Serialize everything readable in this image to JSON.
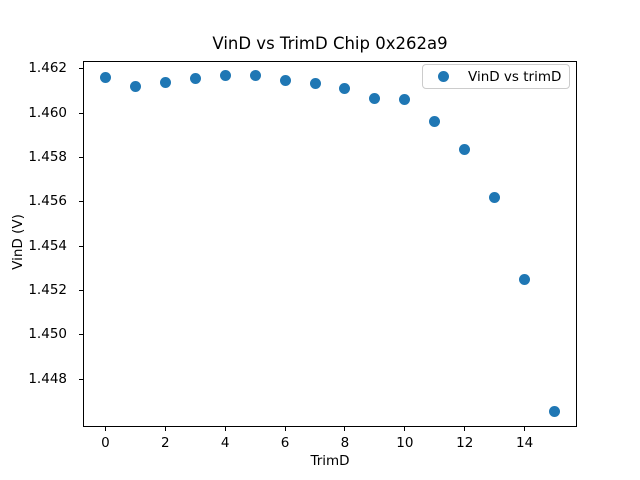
{
  "figure": {
    "background": "#ffffff",
    "spine_color": "#000000",
    "text_color": "#000000"
  },
  "chart_data": {
    "type": "scatter",
    "title": "VinD vs TrimD Chip 0x262a9",
    "xlabel": "TrimD",
    "ylabel": "VinD (V)",
    "grid": false,
    "legend": {
      "position": "upper right",
      "entries": [
        {
          "label": "VinD vs trimD",
          "marker": "circle",
          "color": "#1f77b4"
        }
      ]
    },
    "series": [
      {
        "name": "VinD vs trimD",
        "color": "#1f77b4",
        "marker_size_px": 11,
        "x": [
          0,
          1,
          2,
          3,
          4,
          5,
          6,
          7,
          8,
          9,
          10,
          11,
          12,
          13,
          14,
          15
        ],
        "y": [
          1.4616,
          1.4612,
          1.46138,
          1.46155,
          1.46172,
          1.46172,
          1.46148,
          1.46133,
          1.46112,
          1.46068,
          1.46062,
          1.45963,
          1.45838,
          1.45622,
          1.45252,
          1.44655
        ]
      }
    ],
    "xticks": [
      0,
      2,
      4,
      6,
      8,
      10,
      12,
      14
    ],
    "yticks": [
      1.448,
      1.45,
      1.452,
      1.454,
      1.456,
      1.458,
      1.46,
      1.462
    ],
    "xlim": [
      -0.75,
      15.75
    ],
    "ylim": [
      1.44584,
      1.46236
    ]
  }
}
